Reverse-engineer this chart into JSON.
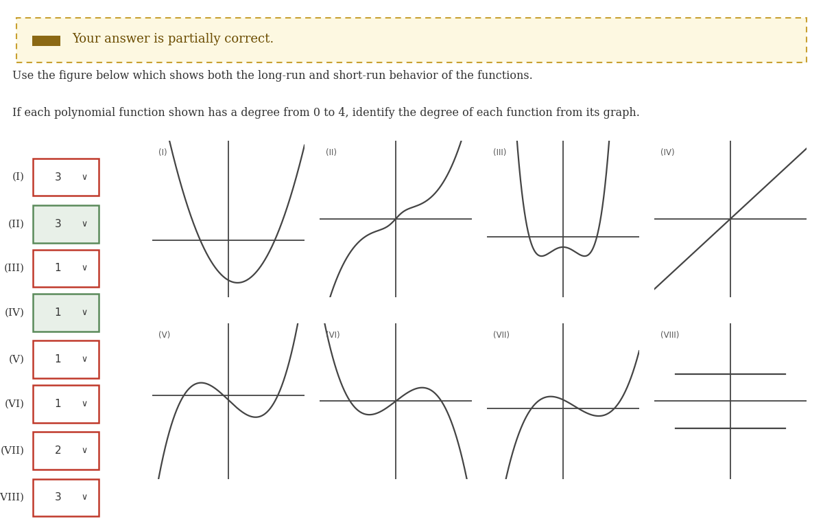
{
  "title_box_text": "Your answer is partially correct.",
  "instruction1": "Use the figure below which shows both the long-run and short-run behavior of the functions.",
  "instruction2": "If each polynomial function shown has a degree from 0 to 4, identify the degree of each function from its graph.",
  "labels": [
    "(I)",
    "(II)",
    "(III)",
    "(IV)",
    "(V)",
    "(VI)",
    "(VII)",
    "(VIII)"
  ],
  "answers": [
    "3",
    "3",
    "1",
    "1",
    "1",
    "1",
    "2",
    "3"
  ],
  "answer_correct": [
    false,
    true,
    false,
    true,
    false,
    false,
    false,
    false
  ],
  "bg_color": "#ffffff",
  "box_bg": "#fdf8e1",
  "box_border": "#c8a030",
  "correct_border": "#5a8a5a",
  "correct_bg": "#e8f0e8",
  "incorrect_border": "#c0392b",
  "incorrect_bg": "#ffffff",
  "text_color": "#333333",
  "axis_color": "#444444",
  "curve_color": "#444444",
  "label_color": "#555555"
}
